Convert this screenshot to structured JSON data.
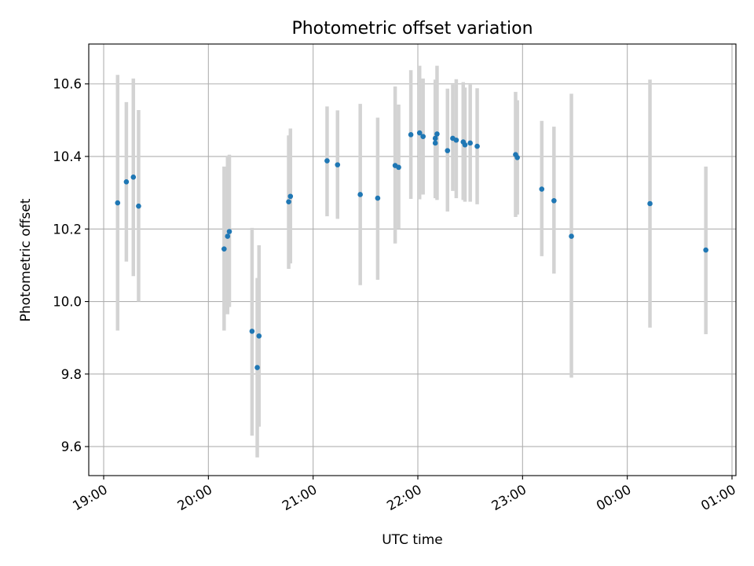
{
  "chart_data": {
    "type": "scatter",
    "title": "Photometric offset variation",
    "xlabel": "UTC time",
    "ylabel": "Photometric offset",
    "x_is_time": true,
    "xlim": [
      "19:00",
      "01:00"
    ],
    "ylim": [
      9.52,
      10.71
    ],
    "x_ticks": [
      "19:00",
      "20:00",
      "21:00",
      "22:00",
      "23:00",
      "00:00",
      "01:00"
    ],
    "y_ticks": [
      "9.6",
      "9.8",
      "10.0",
      "10.2",
      "10.4",
      "10.6"
    ],
    "y_tick_values": [
      9.6,
      9.8,
      10.0,
      10.2,
      10.4,
      10.6
    ],
    "grid": true,
    "point_color": "#1f77b4",
    "errorbar_color": "#d3d3d3",
    "points": [
      {
        "t": "19:08",
        "y": 10.272,
        "lo": 9.92,
        "hi": 10.625
      },
      {
        "t": "19:13",
        "y": 10.33,
        "lo": 10.11,
        "hi": 10.55
      },
      {
        "t": "19:17",
        "y": 10.343,
        "lo": 10.07,
        "hi": 10.615
      },
      {
        "t": "19:20",
        "y": 10.263,
        "lo": 10.0,
        "hi": 10.528
      },
      {
        "t": "20:09",
        "y": 10.145,
        "lo": 9.92,
        "hi": 10.372
      },
      {
        "t": "20:11",
        "y": 10.18,
        "lo": 9.965,
        "hi": 10.402
      },
      {
        "t": "20:12",
        "y": 10.193,
        "lo": 9.985,
        "hi": 10.405
      },
      {
        "t": "20:25",
        "y": 9.918,
        "lo": 9.63,
        "hi": 10.203
      },
      {
        "t": "20:28",
        "y": 9.818,
        "lo": 9.57,
        "hi": 10.065
      },
      {
        "t": "20:29",
        "y": 9.905,
        "lo": 9.655,
        "hi": 10.155
      },
      {
        "t": "20:46",
        "y": 10.275,
        "lo": 10.09,
        "hi": 10.458
      },
      {
        "t": "20:47",
        "y": 10.29,
        "lo": 10.105,
        "hi": 10.477
      },
      {
        "t": "21:08",
        "y": 10.388,
        "lo": 10.235,
        "hi": 10.538
      },
      {
        "t": "21:14",
        "y": 10.377,
        "lo": 10.228,
        "hi": 10.527
      },
      {
        "t": "21:27",
        "y": 10.295,
        "lo": 10.045,
        "hi": 10.545
      },
      {
        "t": "21:37",
        "y": 10.285,
        "lo": 10.06,
        "hi": 10.507
      },
      {
        "t": "21:47",
        "y": 10.375,
        "lo": 10.16,
        "hi": 10.593
      },
      {
        "t": "21:49",
        "y": 10.37,
        "lo": 10.2,
        "hi": 10.543
      },
      {
        "t": "21:56",
        "y": 10.46,
        "lo": 10.283,
        "hi": 10.638
      },
      {
        "t": "22:01",
        "y": 10.465,
        "lo": 10.282,
        "hi": 10.65
      },
      {
        "t": "22:03",
        "y": 10.455,
        "lo": 10.295,
        "hi": 10.615
      },
      {
        "t": "22:10",
        "y": 10.437,
        "lo": 10.285,
        "hi": 10.605
      },
      {
        "t": "22:10",
        "y": 10.45,
        "lo": 10.288,
        "hi": 10.612
      },
      {
        "t": "22:11",
        "y": 10.462,
        "lo": 10.28,
        "hi": 10.65
      },
      {
        "t": "22:17",
        "y": 10.416,
        "lo": 10.248,
        "hi": 10.587
      },
      {
        "t": "22:20",
        "y": 10.45,
        "lo": 10.305,
        "hi": 10.598
      },
      {
        "t": "22:22",
        "y": 10.445,
        "lo": 10.285,
        "hi": 10.613
      },
      {
        "t": "22:26",
        "y": 10.44,
        "lo": 10.28,
        "hi": 10.605
      },
      {
        "t": "22:27",
        "y": 10.432,
        "lo": 10.275,
        "hi": 10.59
      },
      {
        "t": "22:30",
        "y": 10.437,
        "lo": 10.275,
        "hi": 10.598
      },
      {
        "t": "22:34",
        "y": 10.428,
        "lo": 10.268,
        "hi": 10.588
      },
      {
        "t": "22:56",
        "y": 10.405,
        "lo": 10.233,
        "hi": 10.578
      },
      {
        "t": "22:57",
        "y": 10.397,
        "lo": 10.24,
        "hi": 10.555
      },
      {
        "t": "23:11",
        "y": 10.31,
        "lo": 10.125,
        "hi": 10.498
      },
      {
        "t": "23:18",
        "y": 10.278,
        "lo": 10.077,
        "hi": 10.482
      },
      {
        "t": "23:28",
        "y": 10.18,
        "lo": 9.79,
        "hi": 10.573
      },
      {
        "t": "00:13",
        "y": 10.27,
        "lo": 9.928,
        "hi": 10.612
      },
      {
        "t": "00:45",
        "y": 10.142,
        "lo": 9.91,
        "hi": 10.372
      }
    ]
  }
}
